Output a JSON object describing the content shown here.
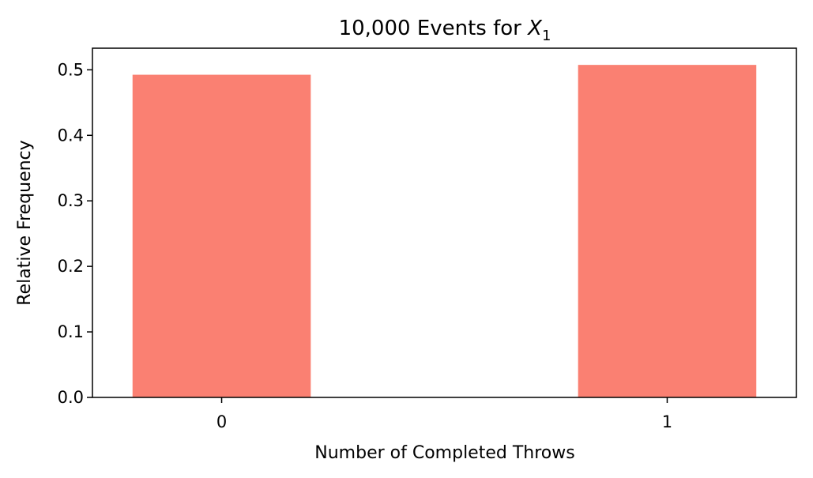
{
  "chart_data": {
    "type": "bar",
    "title_prefix": "10,000 Events for ",
    "title_var": "X",
    "title_sub": "1",
    "xlabel": "Number of Completed Throws",
    "ylabel": "Relative Frequency",
    "categories": [
      "0",
      "1"
    ],
    "values": [
      0.4925,
      0.5075
    ],
    "ylim": [
      0,
      0.533
    ],
    "xlim": [
      -0.29,
      1.29
    ],
    "bar_width": 0.4,
    "yticks": [
      "0.0",
      "0.1",
      "0.2",
      "0.3",
      "0.4",
      "0.5"
    ],
    "grid": false,
    "bar_color": "#fa8072"
  }
}
